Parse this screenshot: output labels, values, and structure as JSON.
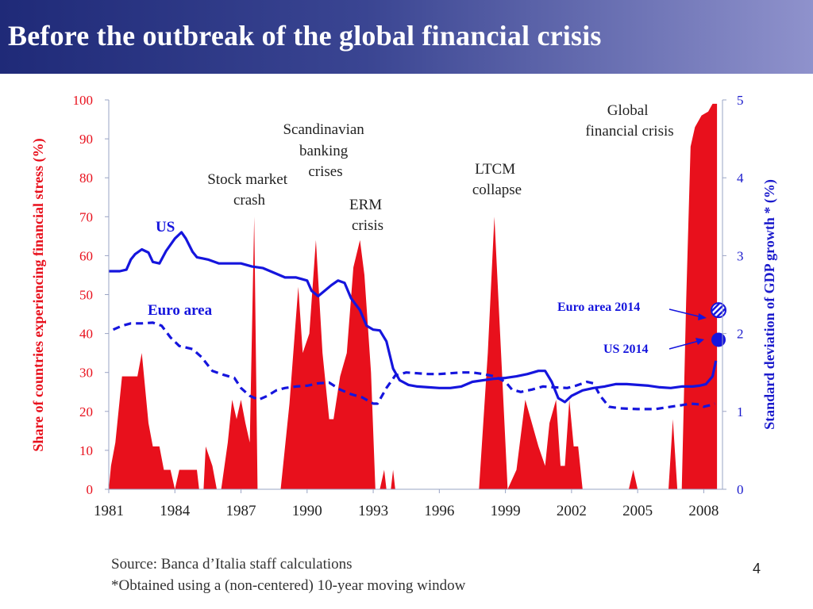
{
  "slide": {
    "title": "Before the outbreak of the global financial crisis",
    "source_line": "Source: Banca d’Italia staff calculations",
    "footnote_line": "*Obtained using a (non-centered) 10-year moving window",
    "page_number": "4"
  },
  "chart_data": {
    "type": "area+line",
    "ylabel_left": "Share of countries experiencing financial stress (%)",
    "ylabel_right": "Standard deviation of GDP growth * (%)",
    "ylim_left": [
      0,
      100
    ],
    "ylim_right": [
      0,
      5
    ],
    "x_ticks": [
      "1981",
      "1984",
      "1987",
      "1990",
      "1993",
      "1996",
      "1999",
      "2002",
      "2005",
      "2008"
    ],
    "y_ticks_left": [
      "0",
      "10",
      "20",
      "30",
      "40",
      "50",
      "60",
      "70",
      "80",
      "90",
      "100"
    ],
    "y_ticks_right": [
      "0",
      "1",
      "2",
      "3",
      "4",
      "5"
    ],
    "colors": {
      "stress": "#e8101c",
      "us": "#1515dd",
      "euro": "#1515dd",
      "left_axis": "#e8101c",
      "right_axis": "#1a1acc"
    },
    "annotations": {
      "stock_market_crash": "Stock market crash",
      "scandinavian": "Scandinavian banking crises",
      "erm": "ERM crisis",
      "ltcm": "LTCM collapse",
      "global": "Global financial crisis",
      "us": "US",
      "euro_area": "Euro area",
      "euro_2014": "Euro area 2014",
      "us_2014": "US 2014"
    },
    "stress_area": [
      [
        1981.0,
        0
      ],
      [
        1981.1,
        6
      ],
      [
        1981.3,
        12
      ],
      [
        1981.6,
        29
      ],
      [
        1982.0,
        29
      ],
      [
        1982.3,
        29
      ],
      [
        1982.5,
        35
      ],
      [
        1982.8,
        17
      ],
      [
        1983.0,
        11
      ],
      [
        1983.3,
        11
      ],
      [
        1983.5,
        5
      ],
      [
        1983.8,
        5
      ],
      [
        1984.0,
        0
      ],
      [
        1984.2,
        5
      ],
      [
        1984.5,
        5
      ],
      [
        1984.8,
        5
      ],
      [
        1985.0,
        5
      ],
      [
        1985.1,
        0
      ],
      [
        1985.3,
        0
      ],
      [
        1985.4,
        11
      ],
      [
        1985.7,
        6
      ],
      [
        1985.9,
        0
      ],
      [
        1986.1,
        0
      ],
      [
        1986.4,
        12
      ],
      [
        1986.6,
        23
      ],
      [
        1986.8,
        18
      ],
      [
        1987.0,
        23
      ],
      [
        1987.2,
        17
      ],
      [
        1987.4,
        12
      ],
      [
        1987.6,
        70
      ],
      [
        1987.75,
        0
      ],
      [
        1988.8,
        0
      ],
      [
        1989.2,
        22
      ],
      [
        1989.6,
        52
      ],
      [
        1989.8,
        35
      ],
      [
        1990.1,
        40
      ],
      [
        1990.4,
        64
      ],
      [
        1990.7,
        35
      ],
      [
        1991.0,
        18
      ],
      [
        1991.2,
        18
      ],
      [
        1991.5,
        29
      ],
      [
        1991.8,
        35
      ],
      [
        1992.1,
        57
      ],
      [
        1992.4,
        64
      ],
      [
        1992.6,
        55
      ],
      [
        1992.9,
        30
      ],
      [
        1993.1,
        0
      ],
      [
        1993.3,
        0
      ],
      [
        1993.5,
        5
      ],
      [
        1993.6,
        0
      ],
      [
        1993.8,
        0
      ],
      [
        1993.9,
        5
      ],
      [
        1994.0,
        0
      ],
      [
        1997.8,
        0
      ],
      [
        1998.2,
        35
      ],
      [
        1998.5,
        70
      ],
      [
        1998.8,
        35
      ],
      [
        1999.1,
        0
      ],
      [
        1999.5,
        5
      ],
      [
        1999.9,
        23
      ],
      [
        2000.2,
        17
      ],
      [
        2000.5,
        11
      ],
      [
        2000.8,
        6
      ],
      [
        2001.0,
        17
      ],
      [
        2001.3,
        23
      ],
      [
        2001.5,
        6
      ],
      [
        2001.7,
        6
      ],
      [
        2001.9,
        23
      ],
      [
        2002.1,
        11
      ],
      [
        2002.3,
        11
      ],
      [
        2002.5,
        0
      ],
      [
        2004.6,
        0
      ],
      [
        2004.8,
        5
      ],
      [
        2005.0,
        0
      ],
      [
        2006.4,
        0
      ],
      [
        2006.6,
        18
      ],
      [
        2006.8,
        0
      ],
      [
        2007.0,
        0
      ],
      [
        2007.2,
        48
      ],
      [
        2007.4,
        88
      ],
      [
        2007.6,
        93
      ],
      [
        2007.9,
        96
      ],
      [
        2008.2,
        97
      ],
      [
        2008.4,
        99
      ],
      [
        2008.6,
        99
      ],
      [
        2008.6,
        0
      ]
    ],
    "us_series": [
      [
        1981.0,
        2.8
      ],
      [
        1981.5,
        2.8
      ],
      [
        1981.8,
        2.82
      ],
      [
        1982.0,
        2.95
      ],
      [
        1982.2,
        3.02
      ],
      [
        1982.5,
        3.08
      ],
      [
        1982.8,
        3.04
      ],
      [
        1983.0,
        2.92
      ],
      [
        1983.3,
        2.9
      ],
      [
        1983.6,
        3.06
      ],
      [
        1984.0,
        3.22
      ],
      [
        1984.3,
        3.3
      ],
      [
        1984.5,
        3.22
      ],
      [
        1984.8,
        3.05
      ],
      [
        1985.0,
        2.98
      ],
      [
        1985.5,
        2.95
      ],
      [
        1986.0,
        2.9
      ],
      [
        1986.5,
        2.9
      ],
      [
        1987.0,
        2.9
      ],
      [
        1987.5,
        2.86
      ],
      [
        1988.0,
        2.84
      ],
      [
        1988.5,
        2.78
      ],
      [
        1989.0,
        2.72
      ],
      [
        1989.5,
        2.72
      ],
      [
        1990.0,
        2.68
      ],
      [
        1990.2,
        2.55
      ],
      [
        1990.5,
        2.48
      ],
      [
        1990.8,
        2.55
      ],
      [
        1991.1,
        2.62
      ],
      [
        1991.4,
        2.68
      ],
      [
        1991.7,
        2.65
      ],
      [
        1992.0,
        2.45
      ],
      [
        1992.4,
        2.3
      ],
      [
        1992.7,
        2.1
      ],
      [
        1993.0,
        2.05
      ],
      [
        1993.3,
        2.04
      ],
      [
        1993.6,
        1.9
      ],
      [
        1993.9,
        1.55
      ],
      [
        1994.2,
        1.4
      ],
      [
        1994.6,
        1.34
      ],
      [
        1995.0,
        1.32
      ],
      [
        1995.5,
        1.31
      ],
      [
        1996.0,
        1.3
      ],
      [
        1996.5,
        1.3
      ],
      [
        1997.0,
        1.32
      ],
      [
        1997.5,
        1.38
      ],
      [
        1998.0,
        1.4
      ],
      [
        1998.5,
        1.42
      ],
      [
        1999.0,
        1.43
      ],
      [
        1999.5,
        1.45
      ],
      [
        2000.0,
        1.48
      ],
      [
        2000.5,
        1.52
      ],
      [
        2000.8,
        1.52
      ],
      [
        2001.1,
        1.38
      ],
      [
        2001.4,
        1.17
      ],
      [
        2001.7,
        1.12
      ],
      [
        2002.0,
        1.2
      ],
      [
        2002.5,
        1.27
      ],
      [
        2003.0,
        1.3
      ],
      [
        2003.5,
        1.32
      ],
      [
        2004.0,
        1.35
      ],
      [
        2004.5,
        1.35
      ],
      [
        2005.0,
        1.34
      ],
      [
        2005.5,
        1.33
      ],
      [
        2006.0,
        1.31
      ],
      [
        2006.5,
        1.3
      ],
      [
        2007.0,
        1.32
      ],
      [
        2007.5,
        1.32
      ],
      [
        2007.8,
        1.33
      ],
      [
        2008.1,
        1.35
      ],
      [
        2008.4,
        1.45
      ],
      [
        2008.55,
        1.65
      ]
    ],
    "euro_series": [
      [
        1981.2,
        2.05
      ],
      [
        1981.6,
        2.1
      ],
      [
        1982.0,
        2.13
      ],
      [
        1982.5,
        2.13
      ],
      [
        1983.0,
        2.14
      ],
      [
        1983.4,
        2.1
      ],
      [
        1983.8,
        1.95
      ],
      [
        1984.2,
        1.84
      ],
      [
        1984.8,
        1.8
      ],
      [
        1985.2,
        1.7
      ],
      [
        1985.7,
        1.52
      ],
      [
        1986.2,
        1.47
      ],
      [
        1986.7,
        1.43
      ],
      [
        1987.0,
        1.3
      ],
      [
        1987.4,
        1.2
      ],
      [
        1987.8,
        1.15
      ],
      [
        1988.2,
        1.2
      ],
      [
        1988.6,
        1.27
      ],
      [
        1989.0,
        1.3
      ],
      [
        1989.5,
        1.32
      ],
      [
        1990.0,
        1.33
      ],
      [
        1990.5,
        1.36
      ],
      [
        1991.0,
        1.37
      ],
      [
        1991.5,
        1.28
      ],
      [
        1992.0,
        1.22
      ],
      [
        1992.5,
        1.18
      ],
      [
        1993.0,
        1.1
      ],
      [
        1993.2,
        1.1
      ],
      [
        1993.6,
        1.3
      ],
      [
        1994.0,
        1.46
      ],
      [
        1994.5,
        1.5
      ],
      [
        1995.0,
        1.49
      ],
      [
        1995.5,
        1.48
      ],
      [
        1996.0,
        1.48
      ],
      [
        1996.5,
        1.49
      ],
      [
        1997.0,
        1.5
      ],
      [
        1997.5,
        1.5
      ],
      [
        1998.0,
        1.48
      ],
      [
        1998.5,
        1.45
      ],
      [
        1999.0,
        1.38
      ],
      [
        1999.3,
        1.28
      ],
      [
        1999.7,
        1.25
      ],
      [
        2000.2,
        1.28
      ],
      [
        2000.7,
        1.32
      ],
      [
        2001.2,
        1.31
      ],
      [
        2001.8,
        1.3
      ],
      [
        2002.2,
        1.33
      ],
      [
        2002.7,
        1.38
      ],
      [
        2003.0,
        1.36
      ],
      [
        2003.3,
        1.2
      ],
      [
        2003.7,
        1.06
      ],
      [
        2004.2,
        1.04
      ],
      [
        2005.0,
        1.03
      ],
      [
        2005.8,
        1.03
      ],
      [
        2006.5,
        1.06
      ],
      [
        2007.0,
        1.08
      ],
      [
        2007.4,
        1.1
      ],
      [
        2007.8,
        1.09
      ],
      [
        2008.0,
        1.06
      ],
      [
        2008.3,
        1.08
      ],
      [
        2008.5,
        1.1
      ]
    ],
    "markers": {
      "euro_2014": 2.3,
      "us_2014": 1.92
    }
  }
}
